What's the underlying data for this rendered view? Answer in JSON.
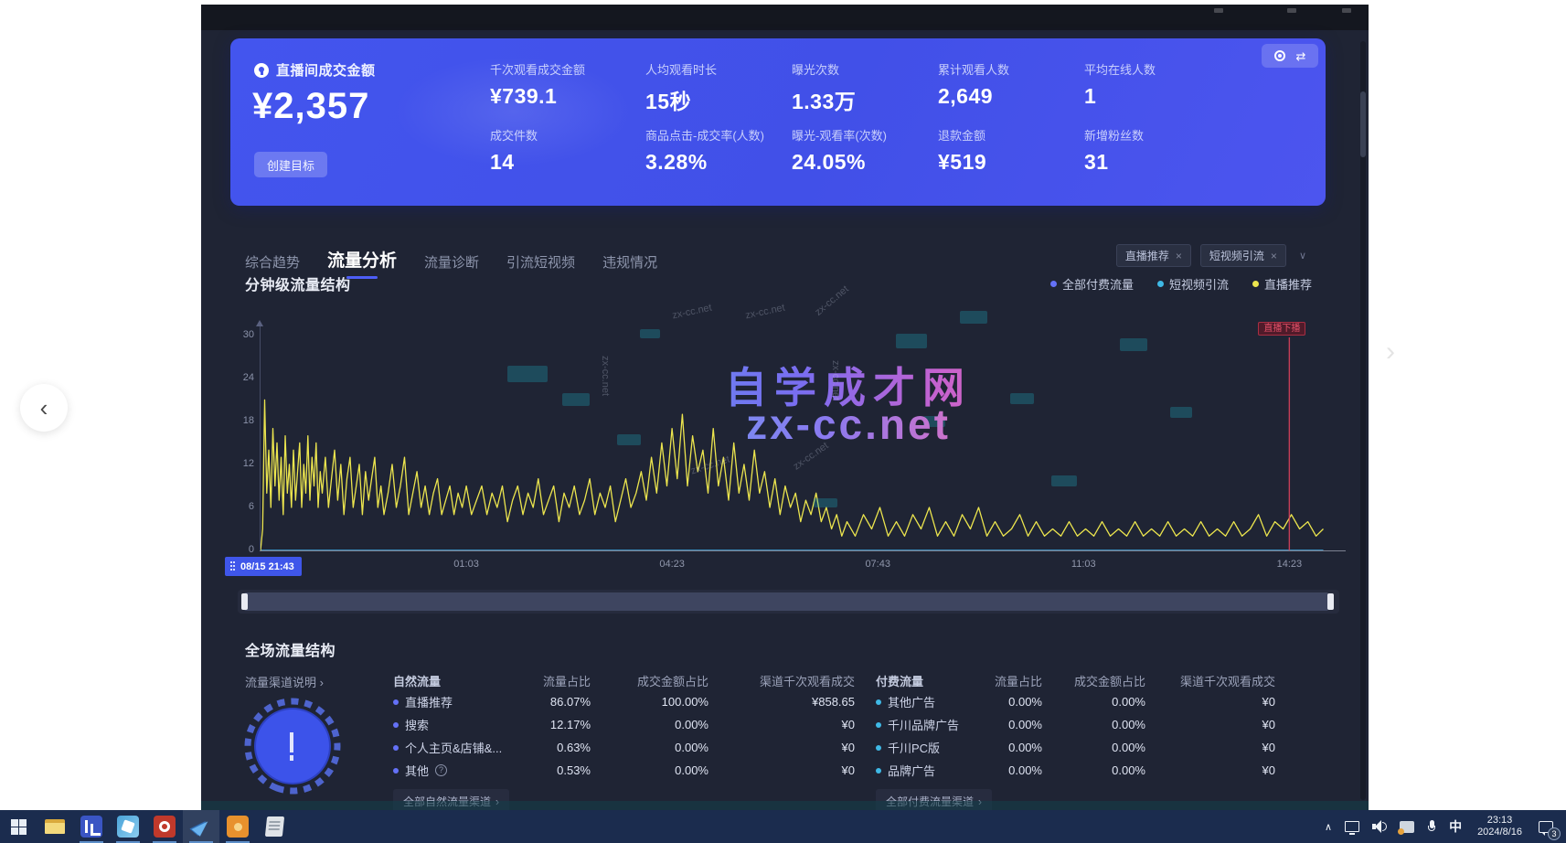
{
  "glyphs": {
    "close": "×",
    "chevron_down": "∨",
    "arrow_right": "›",
    "nav_prev": "‹",
    "nav_next": "›",
    "swap": "⇄"
  },
  "watermarks": {
    "main": "自学成才网",
    "sub": "zx-cc.net",
    "small": "zx-cc.net"
  },
  "kpi_card": {
    "accent_color": "#4355ee",
    "primary_label": "直播间成交金额",
    "primary_value": "¥2,357",
    "goal_button": "创建目标",
    "metrics": [
      {
        "label": "千次观看成交金额",
        "value": "¥739.1"
      },
      {
        "label": "人均观看时长",
        "value": "15秒"
      },
      {
        "label": "曝光次数",
        "value": "1.33万"
      },
      {
        "label": "累计观看人数",
        "value": "2,649"
      },
      {
        "label": "平均在线人数",
        "value": "1"
      },
      {
        "label": "成交件数",
        "value": "14"
      },
      {
        "label": "商品点击-成交率(人数)",
        "value": "3.28%"
      },
      {
        "label": "曝光-观看率(次数)",
        "value": "24.05%"
      },
      {
        "label": "退款金额",
        "value": "¥519"
      },
      {
        "label": "新增粉丝数",
        "value": "31"
      }
    ]
  },
  "tabs": [
    {
      "label": "综合趋势",
      "active": false
    },
    {
      "label": "流量分析",
      "active": true
    },
    {
      "label": "流量诊断",
      "active": false
    },
    {
      "label": "引流短视频",
      "active": false
    },
    {
      "label": "违规情况",
      "active": false
    }
  ],
  "filter_chips": [
    {
      "label": "直播推荐"
    },
    {
      "label": "短视频引流"
    }
  ],
  "chart_section": {
    "title": "分钟级流量结构",
    "legend": [
      {
        "label": "全部付费流量",
        "color": "#6471f7"
      },
      {
        "label": "短视频引流",
        "color": "#3fb9e6"
      },
      {
        "label": "直播推荐",
        "color": "#ece54e"
      }
    ]
  },
  "chart_data": {
    "type": "line",
    "title": "分钟级流量结构",
    "x_axis": {
      "ticks": [
        "08/15 21:43",
        "01:03",
        "04:23",
        "07:43",
        "11:03",
        "14:23"
      ],
      "tick_minutes": [
        0,
        200,
        400,
        600,
        800,
        1000
      ],
      "x_max": 1053
    },
    "y_axis": {
      "ticks": [
        0,
        6,
        12,
        18,
        24,
        30
      ],
      "max": 31
    },
    "event_marker": {
      "label": "直播下播",
      "minute": 1000,
      "color": "#d6415a"
    },
    "series": [
      {
        "name": "直播推荐",
        "color": "#ece54e",
        "points": [
          [
            0,
            0
          ],
          [
            2,
            3
          ],
          [
            4,
            21
          ],
          [
            6,
            8
          ],
          [
            8,
            14
          ],
          [
            10,
            6
          ],
          [
            12,
            17
          ],
          [
            14,
            9
          ],
          [
            16,
            15
          ],
          [
            18,
            7
          ],
          [
            20,
            13
          ],
          [
            22,
            5
          ],
          [
            24,
            16
          ],
          [
            26,
            8
          ],
          [
            28,
            12
          ],
          [
            30,
            6
          ],
          [
            32,
            14
          ],
          [
            34,
            7
          ],
          [
            36,
            11
          ],
          [
            38,
            15
          ],
          [
            40,
            6
          ],
          [
            42,
            12
          ],
          [
            44,
            8
          ],
          [
            46,
            16
          ],
          [
            48,
            7
          ],
          [
            50,
            13
          ],
          [
            52,
            9
          ],
          [
            54,
            15
          ],
          [
            56,
            6
          ],
          [
            58,
            11
          ],
          [
            60,
            8
          ],
          [
            63,
            13
          ],
          [
            66,
            6
          ],
          [
            69,
            10
          ],
          [
            72,
            14
          ],
          [
            75,
            7
          ],
          [
            78,
            12
          ],
          [
            81,
            5
          ],
          [
            84,
            10
          ],
          [
            87,
            13
          ],
          [
            90,
            6
          ],
          [
            93,
            9
          ],
          [
            96,
            12
          ],
          [
            99,
            5
          ],
          [
            102,
            11
          ],
          [
            105,
            7
          ],
          [
            108,
            10
          ],
          [
            111,
            13
          ],
          [
            114,
            6
          ],
          [
            117,
            9
          ],
          [
            120,
            5
          ],
          [
            124,
            8
          ],
          [
            128,
            12
          ],
          [
            132,
            6
          ],
          [
            136,
            9
          ],
          [
            140,
            13
          ],
          [
            144,
            5
          ],
          [
            148,
            8
          ],
          [
            152,
            11
          ],
          [
            156,
            6
          ],
          [
            160,
            9
          ],
          [
            164,
            5
          ],
          [
            168,
            8
          ],
          [
            172,
            10
          ],
          [
            176,
            5
          ],
          [
            180,
            7
          ],
          [
            184,
            9
          ],
          [
            188,
            5
          ],
          [
            192,
            8
          ],
          [
            196,
            6
          ],
          [
            200,
            9
          ],
          [
            205,
            5
          ],
          [
            210,
            7
          ],
          [
            215,
            9
          ],
          [
            220,
            5
          ],
          [
            225,
            8
          ],
          [
            230,
            6
          ],
          [
            235,
            9
          ],
          [
            240,
            4
          ],
          [
            245,
            7
          ],
          [
            250,
            9
          ],
          [
            255,
            5
          ],
          [
            260,
            8
          ],
          [
            265,
            6
          ],
          [
            270,
            10
          ],
          [
            275,
            5
          ],
          [
            280,
            7
          ],
          [
            285,
            9
          ],
          [
            290,
            4
          ],
          [
            295,
            8
          ],
          [
            300,
            6
          ],
          [
            305,
            9
          ],
          [
            310,
            5
          ],
          [
            315,
            7
          ],
          [
            320,
            10
          ],
          [
            325,
            5
          ],
          [
            330,
            8
          ],
          [
            335,
            6
          ],
          [
            340,
            9
          ],
          [
            345,
            4
          ],
          [
            350,
            7
          ],
          [
            355,
            10
          ],
          [
            360,
            6
          ],
          [
            365,
            8
          ],
          [
            370,
            11
          ],
          [
            375,
            7
          ],
          [
            380,
            13
          ],
          [
            385,
            8
          ],
          [
            390,
            15
          ],
          [
            395,
            9
          ],
          [
            400,
            17
          ],
          [
            405,
            10
          ],
          [
            410,
            19
          ],
          [
            415,
            9
          ],
          [
            420,
            16
          ],
          [
            425,
            11
          ],
          [
            430,
            14
          ],
          [
            435,
            8
          ],
          [
            440,
            17
          ],
          [
            445,
            9
          ],
          [
            450,
            13
          ],
          [
            455,
            7
          ],
          [
            460,
            15
          ],
          [
            465,
            8
          ],
          [
            470,
            12
          ],
          [
            475,
            7
          ],
          [
            480,
            14
          ],
          [
            485,
            8
          ],
          [
            490,
            11
          ],
          [
            495,
            6
          ],
          [
            500,
            10
          ],
          [
            505,
            5
          ],
          [
            510,
            9
          ],
          [
            515,
            6
          ],
          [
            520,
            8
          ],
          [
            525,
            4
          ],
          [
            530,
            7
          ],
          [
            535,
            5
          ],
          [
            540,
            8
          ],
          [
            545,
            4
          ],
          [
            550,
            6
          ],
          [
            555,
            3
          ],
          [
            560,
            5
          ],
          [
            565,
            2
          ],
          [
            570,
            4
          ],
          [
            578,
            2
          ],
          [
            586,
            5
          ],
          [
            594,
            3
          ],
          [
            602,
            6
          ],
          [
            610,
            2
          ],
          [
            618,
            4
          ],
          [
            626,
            2
          ],
          [
            634,
            5
          ],
          [
            642,
            3
          ],
          [
            650,
            6
          ],
          [
            658,
            2
          ],
          [
            666,
            4
          ],
          [
            674,
            2
          ],
          [
            682,
            5
          ],
          [
            690,
            3
          ],
          [
            698,
            6
          ],
          [
            706,
            2
          ],
          [
            714,
            4
          ],
          [
            722,
            2
          ],
          [
            730,
            3
          ],
          [
            738,
            5
          ],
          [
            746,
            2
          ],
          [
            754,
            4
          ],
          [
            762,
            2
          ],
          [
            770,
            3
          ],
          [
            778,
            2
          ],
          [
            786,
            4
          ],
          [
            794,
            2
          ],
          [
            802,
            3
          ],
          [
            810,
            2
          ],
          [
            818,
            4
          ],
          [
            826,
            2
          ],
          [
            834,
            3
          ],
          [
            842,
            2
          ],
          [
            850,
            4
          ],
          [
            858,
            2
          ],
          [
            866,
            3
          ],
          [
            874,
            2
          ],
          [
            882,
            4
          ],
          [
            890,
            2
          ],
          [
            898,
            3
          ],
          [
            906,
            2
          ],
          [
            914,
            4
          ],
          [
            922,
            2
          ],
          [
            930,
            3
          ],
          [
            938,
            2
          ],
          [
            946,
            4
          ],
          [
            954,
            2
          ],
          [
            962,
            3
          ],
          [
            970,
            5
          ],
          [
            978,
            2
          ],
          [
            986,
            4
          ],
          [
            994,
            3
          ],
          [
            1002,
            5
          ],
          [
            1010,
            3
          ],
          [
            1018,
            4
          ],
          [
            1026,
            2
          ],
          [
            1033,
            3
          ]
        ]
      },
      {
        "name": "短视频引流",
        "color": "#3fb9e6",
        "points": [
          [
            0,
            0
          ],
          [
            1033,
            0
          ]
        ]
      },
      {
        "name": "全部付费流量",
        "color": "#6471f7",
        "points": [
          [
            0,
            0
          ],
          [
            1033,
            0
          ]
        ]
      }
    ]
  },
  "traffic_section": {
    "title": "全场流量结构",
    "channel_info_link": "流量渠道说明",
    "columns": [
      "流量占比",
      "成交金额占比",
      "渠道千次观看成交"
    ],
    "natural": {
      "group_label": "自然流量",
      "rows": [
        {
          "name": "直播推荐",
          "dot": "#6471f7",
          "share": "86.07%",
          "gmv_share": "100.00%",
          "gpm": "¥858.65"
        },
        {
          "name": "搜索",
          "dot": "#6471f7",
          "share": "12.17%",
          "gmv_share": "0.00%",
          "gpm": "¥0"
        },
        {
          "name": "个人主页&店铺&...",
          "dot": "#6471f7",
          "share": "0.63%",
          "gmv_share": "0.00%",
          "gpm": "¥0"
        },
        {
          "name": "其他",
          "dot": "#6471f7",
          "info": "?",
          "share": "0.53%",
          "gmv_share": "0.00%",
          "gpm": "¥0"
        }
      ],
      "footer_link": "全部自然流量渠道"
    },
    "paid": {
      "group_label": "付费流量",
      "rows": [
        {
          "name": "其他广告",
          "dot": "#3fb9e6",
          "share": "0.00%",
          "gmv_share": "0.00%",
          "gpm": "¥0"
        },
        {
          "name": "千川品牌广告",
          "dot": "#3fb9e6",
          "share": "0.00%",
          "gmv_share": "0.00%",
          "gpm": "¥0"
        },
        {
          "name": "千川PC版",
          "dot": "#3fb9e6",
          "share": "0.00%",
          "gmv_share": "0.00%",
          "gpm": "¥0"
        },
        {
          "name": "品牌广告",
          "dot": "#3fb9e6",
          "share": "0.00%",
          "gmv_share": "0.00%",
          "gpm": "¥0"
        }
      ],
      "footer_link": "全部付费流量渠道"
    },
    "donut_color": "#3c53ea"
  },
  "taskbar": {
    "time": "23:13",
    "date": "2024/8/16",
    "ime_label": "中",
    "notification_count": "3"
  }
}
